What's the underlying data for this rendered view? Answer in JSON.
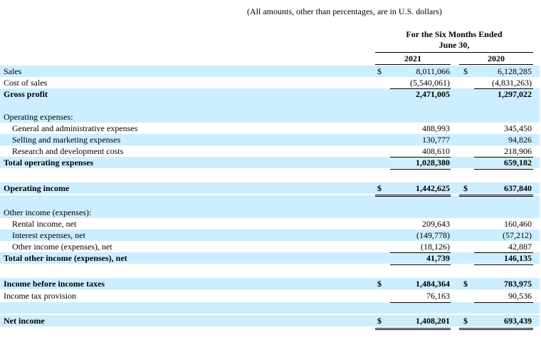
{
  "header": {
    "note": "(All amounts, other than percentages, are in U.S. dollars)",
    "period_line1": "For the Six Months Ended",
    "period_line2": "June 30,",
    "year1": "2021",
    "year2": "2020"
  },
  "rows": [
    {
      "label": "Sales",
      "dollar1": "$",
      "v1": "8,011,066",
      "dollar2": "$",
      "v2": "6,128,285"
    },
    {
      "label": "Cost of sales",
      "v1": "(5,540,061)",
      "v2": "(4,831,263)"
    },
    {
      "label": "Gross profit",
      "v1": "2,471,005",
      "v2": "1,297,022"
    },
    {
      "label": "Operating expenses:"
    },
    {
      "label": "General and administrative expenses",
      "v1": "488,993",
      "v2": "345,450"
    },
    {
      "label": "Selling and marketing expenses",
      "v1": "130,777",
      "v2": "94,826"
    },
    {
      "label": "Research and development costs",
      "v1": "408,610",
      "v2": "218,906"
    },
    {
      "label": "Total operating expenses",
      "v1": "1,028,380",
      "v2": "659,182"
    },
    {
      "label": "Operating income",
      "dollar1": "$",
      "v1": "1,442,625",
      "dollar2": "$",
      "v2": "637,840"
    },
    {
      "label": "Other income (expenses):"
    },
    {
      "label": "Rental income, net",
      "v1": "209,643",
      "v2": "160,460"
    },
    {
      "label": "Interest expenses, net",
      "v1": "(149,778)",
      "v2": "(57,212)"
    },
    {
      "label": "Other income (expenses), net",
      "v1": "(18,126)",
      "v2": "42,887"
    },
    {
      "label": "Total other income (expenses), net",
      "v1": "41,739",
      "v2": "146,135"
    },
    {
      "label": "Income before income taxes",
      "dollar1": "$",
      "v1": "1,484,364",
      "dollar2": "$",
      "v2": "783,975"
    },
    {
      "label": "Income tax provision",
      "v1": "76,163",
      "v2": "90,536"
    },
    {
      "label": "Net income",
      "dollar1": "$",
      "v1": "1,408,201",
      "dollar2": "$",
      "v2": "693,439"
    }
  ]
}
